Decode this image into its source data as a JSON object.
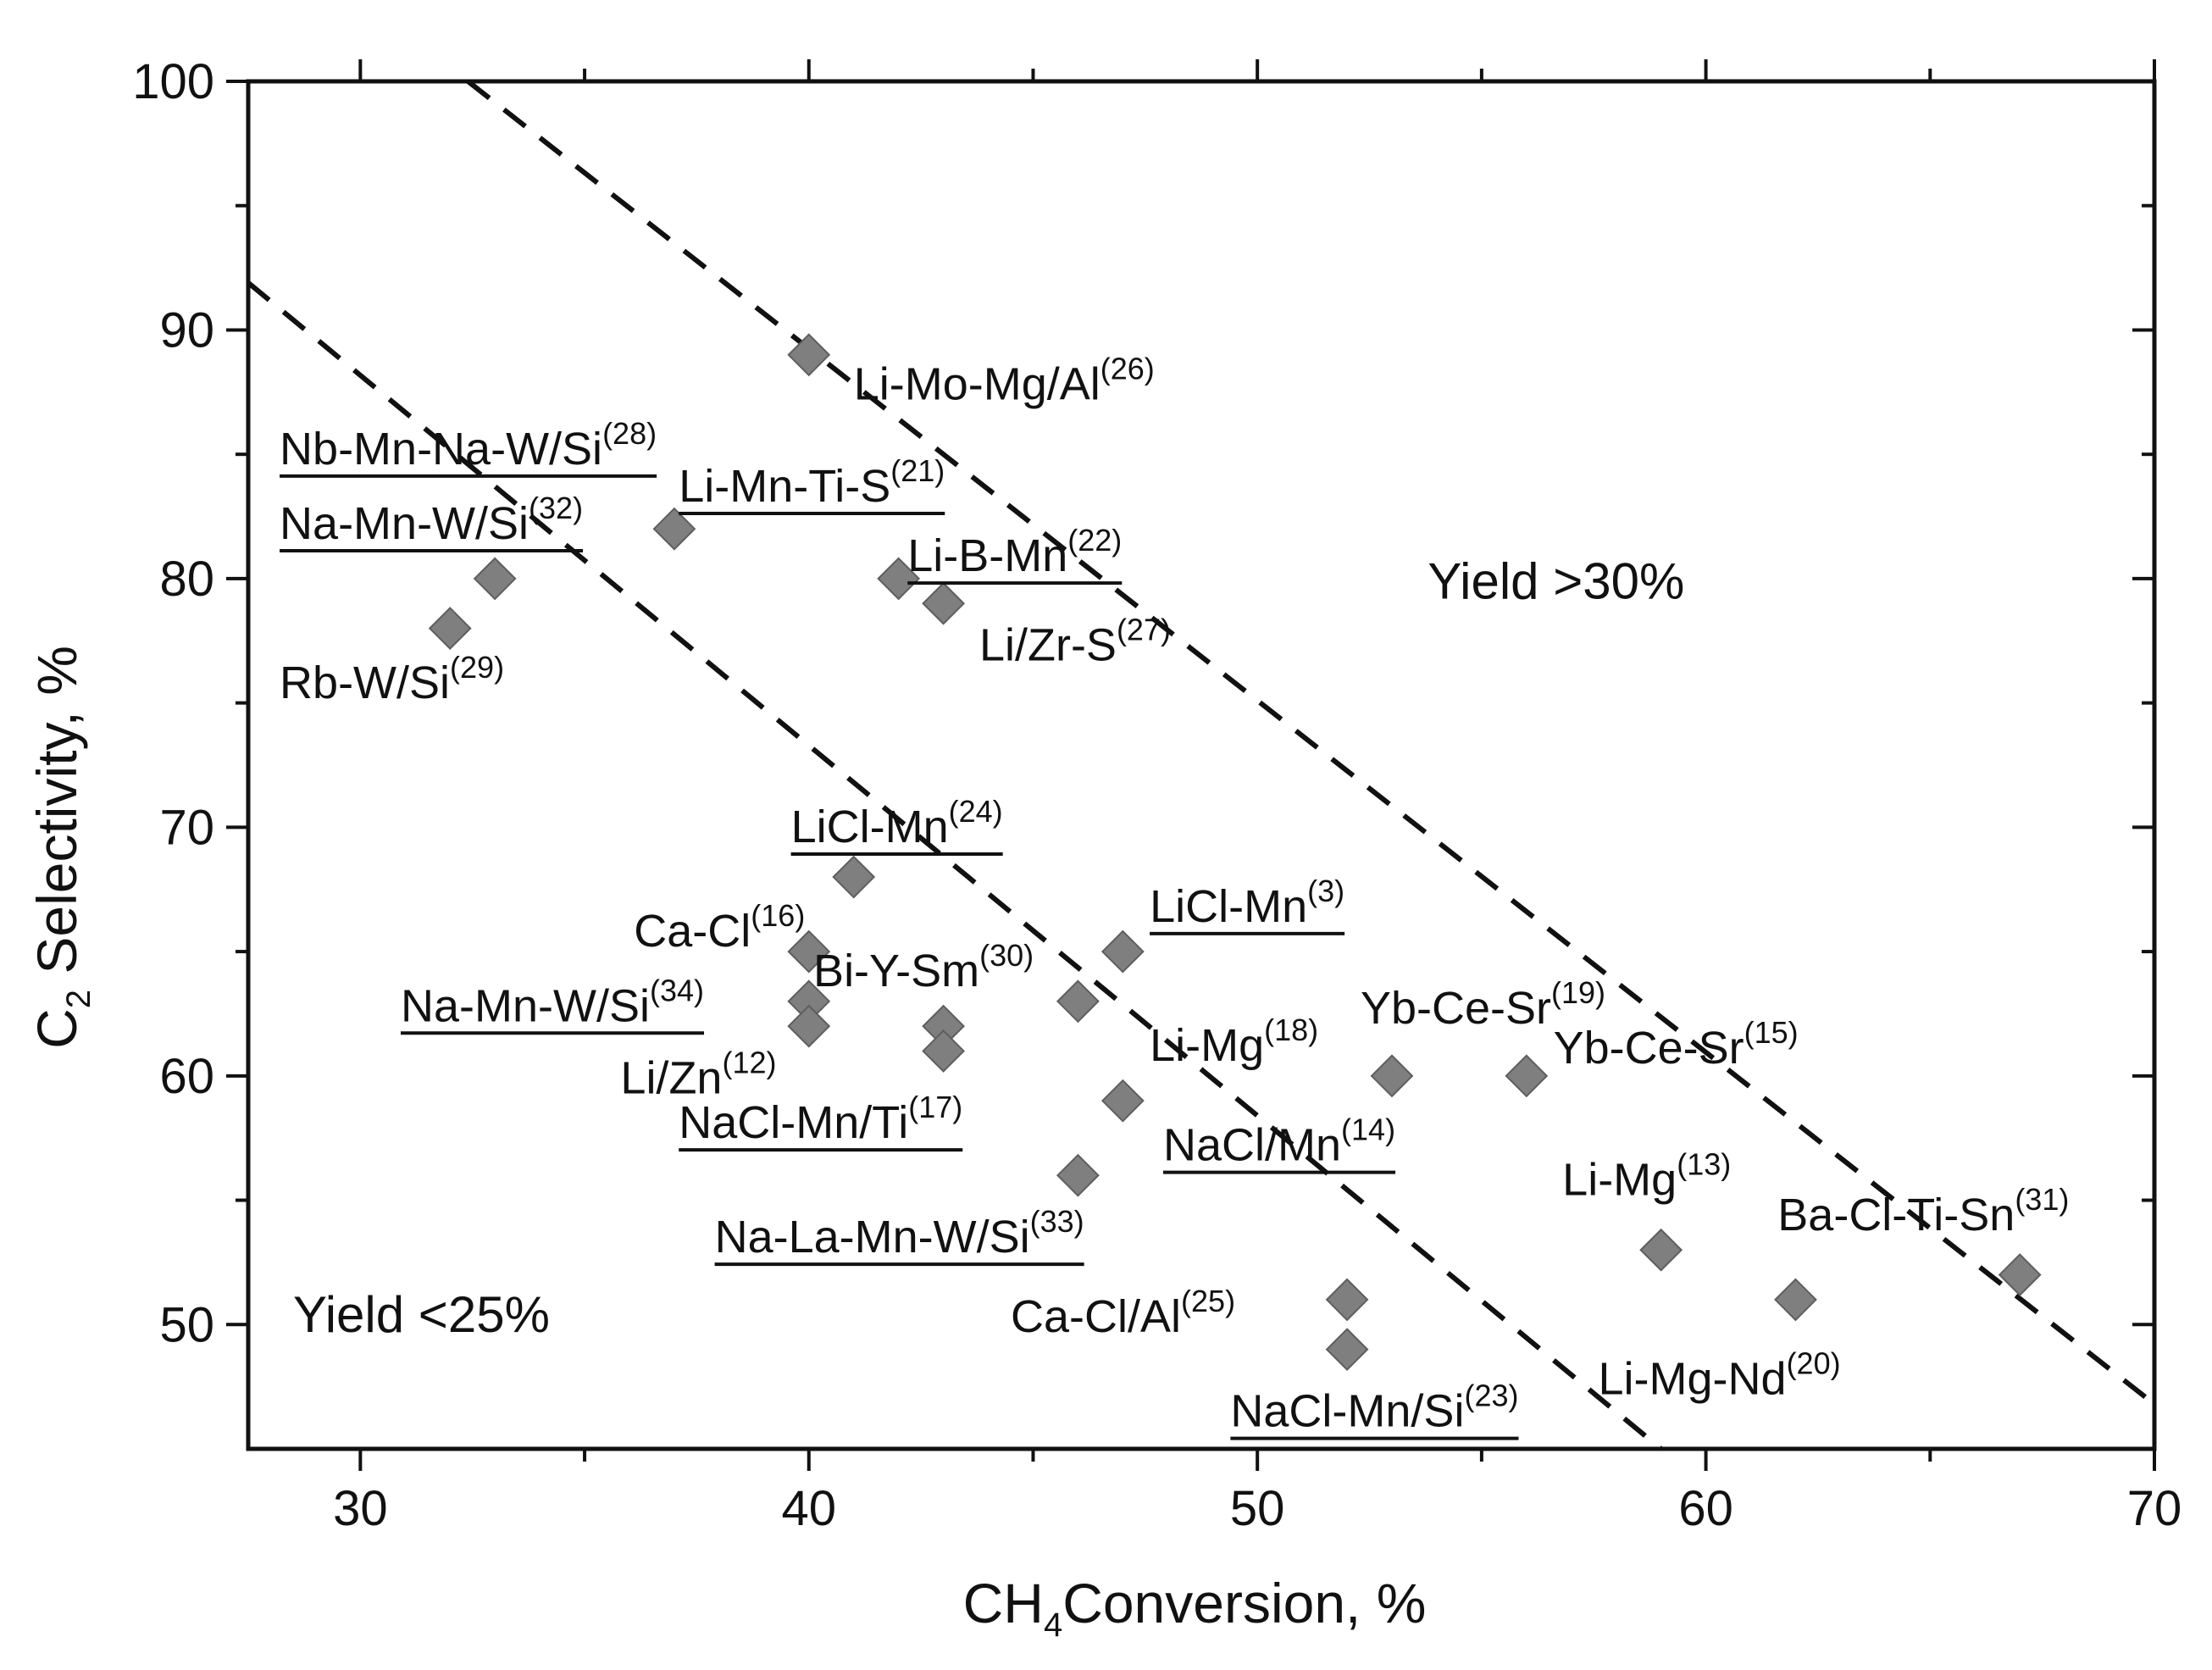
{
  "chart_data": {
    "type": "scatter",
    "title": "",
    "xlabel": {
      "main": "CH",
      "sub": "4",
      "rest": "Conversion, %"
    },
    "ylabel": {
      "main": "C",
      "sub": "2",
      "rest": " Selectivity, %"
    },
    "xlim": [
      27.5,
      70
    ],
    "ylim": [
      45,
      100
    ],
    "xticks": [
      30,
      40,
      50,
      60,
      70
    ],
    "xtick_labels": [
      "30",
      "40",
      "50",
      "60",
      "70"
    ],
    "yticks": [
      50,
      60,
      70,
      80,
      90,
      100
    ],
    "ytick_labels": [
      "50",
      "60",
      "70",
      "80",
      "90",
      "100"
    ],
    "grid": false,
    "marker": {
      "shape": "diamond",
      "color": "#7f7f7f"
    },
    "dashed_line_color": "#111111",
    "points": [
      {
        "x": 40,
        "y": 89
      },
      {
        "x": 37,
        "y": 82
      },
      {
        "x": 33,
        "y": 80
      },
      {
        "x": 32,
        "y": 78
      },
      {
        "x": 42,
        "y": 80
      },
      {
        "x": 43,
        "y": 79
      },
      {
        "x": 41,
        "y": 68
      },
      {
        "x": 40,
        "y": 65
      },
      {
        "x": 40,
        "y": 63
      },
      {
        "x": 40,
        "y": 62
      },
      {
        "x": 43,
        "y": 62
      },
      {
        "x": 43,
        "y": 61
      },
      {
        "x": 46,
        "y": 63
      },
      {
        "x": 47,
        "y": 65
      },
      {
        "x": 47,
        "y": 59
      },
      {
        "x": 46,
        "y": 56
      },
      {
        "x": 53,
        "y": 60
      },
      {
        "x": 56,
        "y": 60
      },
      {
        "x": 59,
        "y": 53
      },
      {
        "x": 62,
        "y": 51
      },
      {
        "x": 67,
        "y": 52
      },
      {
        "x": 52,
        "y": 51
      },
      {
        "x": 52,
        "y": 49
      }
    ],
    "lines": [
      {
        "label": "Yield 25%",
        "x": [
          27.5,
          59
        ],
        "y": [
          91.9,
          45
        ]
      },
      {
        "label": "Yield 30%",
        "x": [
          32.4,
          70
        ],
        "y": [
          100,
          46.8
        ]
      }
    ],
    "annotations": [
      {
        "text": "Li-Mo-Mg/Al",
        "ref": "(26)",
        "x": 41,
        "y": 87.2,
        "underline": false
      },
      {
        "text": "Nb-Mn-Na-W/Si",
        "ref": "(28)",
        "x": 28.2,
        "y": 84.6,
        "underline": true
      },
      {
        "text": "Li-Mn-Ti-S",
        "ref": "(21)",
        "x": 37.1,
        "y": 83.1,
        "underline": true
      },
      {
        "text": "Na-Mn-W/Si",
        "ref": "(32)",
        "x": 28.2,
        "y": 81.6,
        "underline": true
      },
      {
        "text": "Li-B-Mn",
        "ref": "(22)",
        "x": 42.2,
        "y": 80.3,
        "underline": true
      },
      {
        "text": "Li/Zr-S",
        "ref": "(27)",
        "x": 43.8,
        "y": 76.7,
        "underline": false
      },
      {
        "text": "Rb-W/Si",
        "ref": "(29)",
        "x": 28.2,
        "y": 75.2,
        "underline": false
      },
      {
        "text": "LiCl-Mn",
        "ref": "(24)",
        "x": 39.6,
        "y": 69.4,
        "underline": true
      },
      {
        "text": "Ca-Cl",
        "ref": "(16)",
        "x": 36.1,
        "y": 65.2,
        "underline": false
      },
      {
        "text": "LiCl-Mn",
        "ref": "(3)",
        "x": 47.6,
        "y": 66.2,
        "underline": true
      },
      {
        "text": "Na-Mn-W/Si",
        "ref": "(34)",
        "x": 30.9,
        "y": 62.2,
        "underline": true
      },
      {
        "text": "Bi-Y-Sm",
        "ref": "(30)",
        "x": 40.1,
        "y": 63.6,
        "underline": false
      },
      {
        "text": "Yb-Ce-Sr",
        "ref": "(19)",
        "x": 52.3,
        "y": 62.1,
        "underline": false
      },
      {
        "text": "Li-Mg",
        "ref": "(18)",
        "x": 47.6,
        "y": 60.6,
        "underline": false
      },
      {
        "text": "Yb-Ce-Sr",
        "ref": "(15)",
        "x": 56.6,
        "y": 60.5,
        "underline": false
      },
      {
        "text": "Li/Zn",
        "ref": "(12)",
        "x": 35.8,
        "y": 59.3,
        "underline": false
      },
      {
        "text": "NaCl-Mn/Ti",
        "ref": "(17)",
        "x": 37.1,
        "y": 57.5,
        "underline": true
      },
      {
        "text": "NaCl/Mn",
        "ref": "(14)",
        "x": 47.9,
        "y": 56.6,
        "underline": true
      },
      {
        "text": "Li-Mg",
        "ref": "(13)",
        "x": 56.8,
        "y": 55.2,
        "underline": false
      },
      {
        "text": "Ba-Cl-Ti-Sn",
        "ref": "(31)",
        "x": 61.6,
        "y": 53.8,
        "underline": false
      },
      {
        "text": "Na-La-Mn-W/Si",
        "ref": "(33)",
        "x": 37.9,
        "y": 52.9,
        "underline": true
      },
      {
        "text": "Ca-Cl/Al",
        "ref": "(25)",
        "x": 44.5,
        "y": 49.7,
        "underline": false
      },
      {
        "text": "Li-Mg-Nd",
        "ref": "(20)",
        "x": 57.6,
        "y": 47.2,
        "underline": false
      },
      {
        "text": "NaCl-Mn/Si",
        "ref": "(23)",
        "x": 49.4,
        "y": 45.9,
        "underline": true
      }
    ],
    "region_labels": [
      {
        "text": "Yield >30%",
        "x": 53.8,
        "y": 79.2
      },
      {
        "text": "Yield <25%",
        "x": 28.5,
        "y": 49.7
      }
    ]
  }
}
